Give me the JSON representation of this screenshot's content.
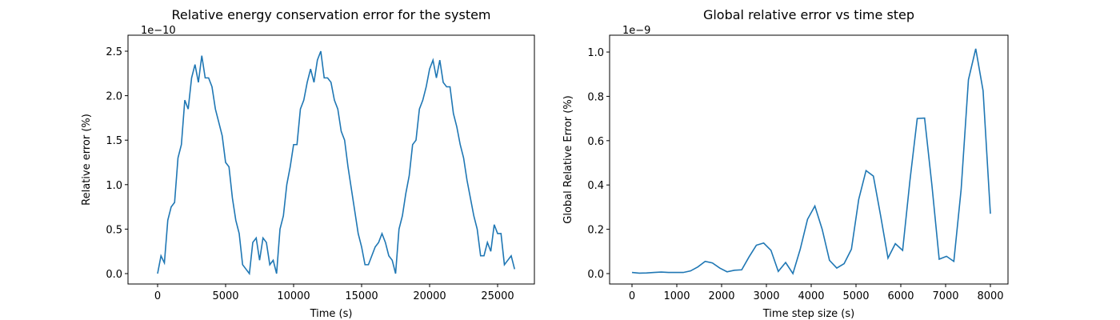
{
  "chart_data": [
    {
      "type": "line",
      "title": "Relative energy conservation error for the system",
      "xlabel": "Time (s)",
      "ylabel": "Relative error (%)",
      "y_offset_text": "1e−10",
      "xlim": [
        -2176,
        27706
      ],
      "ylim": [
        -0.117,
        2.68
      ],
      "xticks": [
        0,
        5000,
        10000,
        15000,
        20000,
        25000
      ],
      "yticks": [
        {
          "value": 0,
          "label": "0.0"
        },
        0.5,
        {
          "value": 1,
          "label": "1.0"
        },
        1.5,
        {
          "value": 2,
          "label": "2.0"
        },
        2.5
      ],
      "x": [
        0,
        250,
        500,
        750,
        1000,
        1250,
        1500,
        1750,
        2000,
        2250,
        2500,
        2750,
        3000,
        3250,
        3500,
        3750,
        4000,
        4250,
        4500,
        4750,
        5000,
        5250,
        5500,
        5750,
        6000,
        6250,
        6500,
        6750,
        7000,
        7250,
        7500,
        7750,
        8000,
        8250,
        8500,
        8750,
        9000,
        9250,
        9500,
        9750,
        10000,
        10250,
        10500,
        10750,
        11000,
        11250,
        11500,
        11750,
        12000,
        12250,
        12500,
        12750,
        13000,
        13250,
        13500,
        13750,
        14000,
        14250,
        14500,
        14750,
        15000,
        15250,
        15500,
        15750,
        16000,
        16250,
        16500,
        16750,
        17000,
        17250,
        17500,
        17750,
        18000,
        18250,
        18500,
        18750,
        19000,
        19250,
        19500,
        19750,
        20000,
        20250,
        20500,
        20750,
        21000,
        21250,
        21500,
        21750,
        22000,
        22250,
        22500,
        22750,
        23000,
        23250,
        23500,
        23750,
        24000,
        24250,
        24500,
        24750,
        25000,
        25250,
        25500,
        25750,
        26000,
        26250
      ],
      "series": [
        {
          "color": "#1f77b4",
          "values": [
            0,
            0.2,
            0.12,
            0.6,
            0.75,
            0.8,
            1.3,
            1.45,
            1.95,
            1.85,
            2.2,
            2.35,
            2.15,
            2.45,
            2.2,
            2.2,
            2.1,
            1.85,
            1.7,
            1.55,
            1.25,
            1.2,
            0.85,
            0.6,
            0.45,
            0.1,
            0.05,
            0,
            0.35,
            0.4,
            0.15,
            0.4,
            0.35,
            0.1,
            0.15,
            0,
            0.5,
            0.65,
            1.0,
            1.2,
            1.45,
            1.45,
            1.85,
            1.95,
            2.15,
            2.3,
            2.15,
            2.4,
            2.5,
            2.2,
            2.2,
            2.15,
            1.95,
            1.85,
            1.6,
            1.5,
            1.2,
            0.95,
            0.7,
            0.45,
            0.3,
            0.1,
            0.1,
            0.2,
            0.3,
            0.35,
            0.45,
            0.35,
            0.2,
            0.15,
            0,
            0.5,
            0.65,
            0.9,
            1.1,
            1.45,
            1.5,
            1.85,
            1.95,
            2.1,
            2.3,
            2.4,
            2.2,
            2.4,
            2.15,
            2.1,
            2.1,
            1.8,
            1.65,
            1.45,
            1.3,
            1.05,
            0.85,
            0.65,
            0.5,
            0.2,
            0.2,
            0.35,
            0.25,
            0.55,
            0.45,
            0.45,
            0.1,
            0.15,
            0.2,
            0.05
          ]
        }
      ]
    },
    {
      "type": "line",
      "title": "Global relative error vs time step",
      "xlabel": "Time step size (s)",
      "ylabel": "Global Relative Error (%)",
      "y_offset_text": "1e−9",
      "xlim": [
        -500,
        8393
      ],
      "ylim": [
        -0.047,
        1.076
      ],
      "xticks": [
        0,
        1000,
        2000,
        3000,
        4000,
        5000,
        6000,
        7000,
        8000
      ],
      "yticks": [
        {
          "value": 0,
          "label": "0.0"
        },
        0.2,
        0.4,
        0.6,
        0.8,
        {
          "value": 1,
          "label": "1.0"
        }
      ],
      "x": [
        0,
        163,
        327,
        490,
        653,
        816,
        980,
        1143,
        1306,
        1469,
        1633,
        1796,
        1959,
        2122,
        2286,
        2449,
        2612,
        2776,
        2939,
        3102,
        3265,
        3429,
        3592,
        3755,
        3918,
        4082,
        4245,
        4408,
        4571,
        4735,
        4898,
        5061,
        5224,
        5388,
        5551,
        5714,
        5878,
        6041,
        6204,
        6367,
        6531,
        6694,
        6857,
        7020,
        7184,
        7347,
        7510,
        7673,
        7837,
        8000
      ],
      "series": [
        {
          "color": "#1f77b4",
          "values": [
            0.005,
            0.002,
            0.003,
            0.005,
            0.007,
            0.005,
            0.005,
            0.005,
            0.012,
            0.03,
            0.055,
            0.048,
            0.025,
            0.008,
            0.015,
            0.017,
            0.075,
            0.128,
            0.138,
            0.105,
            0.01,
            0.05,
            0,
            0.11,
            0.245,
            0.305,
            0.2,
            0.06,
            0.025,
            0.045,
            0.11,
            0.335,
            0.465,
            0.44,
            0.26,
            0.07,
            0.135,
            0.105,
            0.42,
            0.7,
            0.702,
            0.4,
            0.065,
            0.078,
            0.055,
            0.38,
            0.875,
            1.015,
            0.825,
            0.27
          ]
        }
      ]
    }
  ]
}
